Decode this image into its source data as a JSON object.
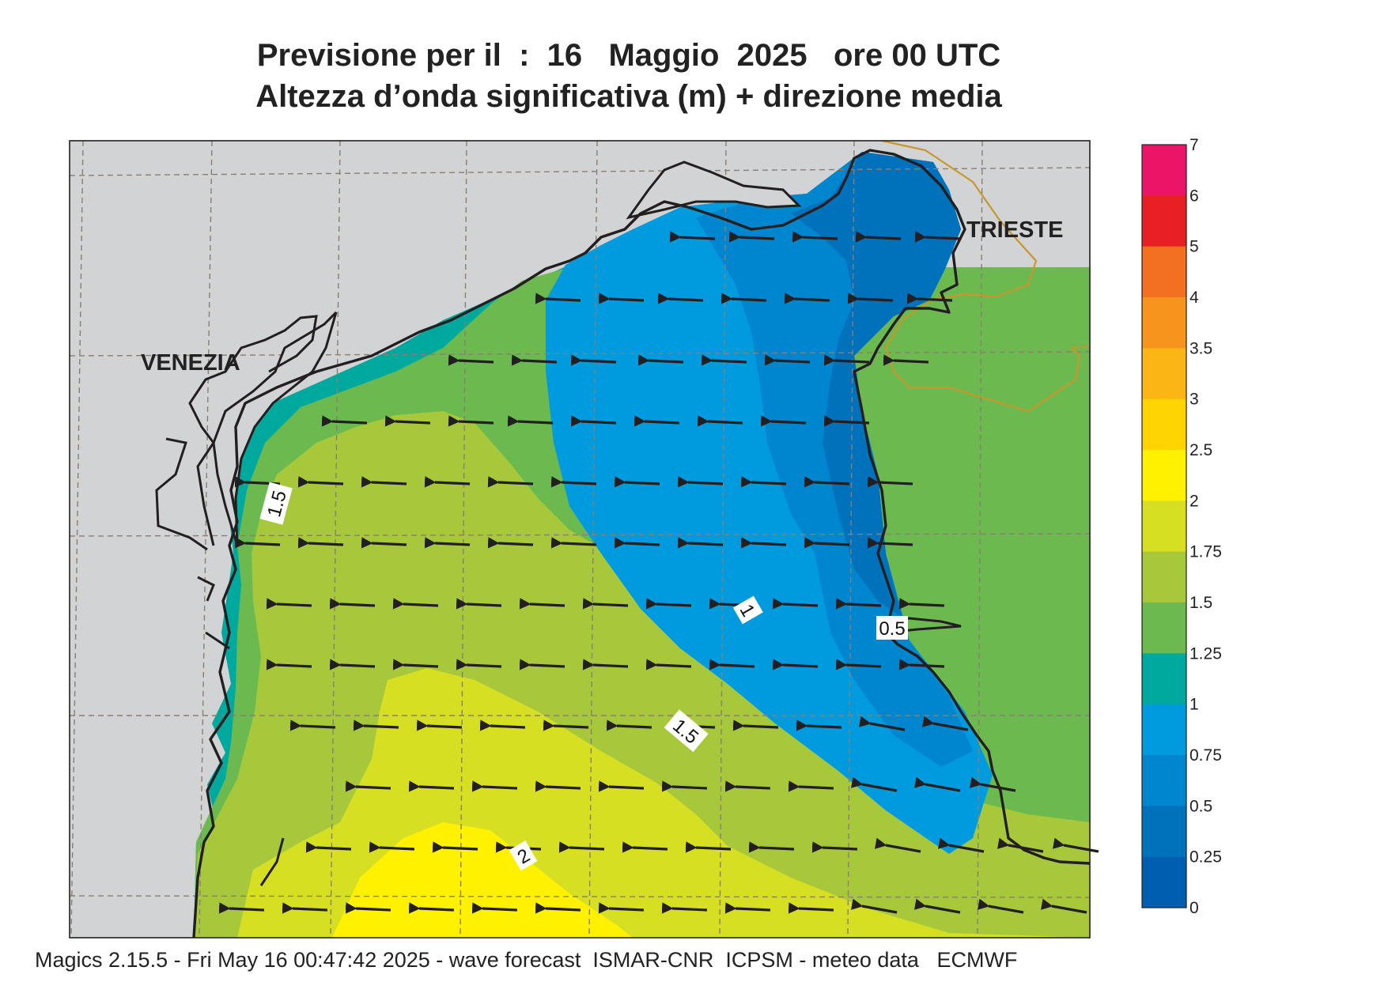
{
  "title": {
    "line1": "Previsione per il  :  16   Maggio  2025   ore 00 UTC",
    "line2": "Altezza d’onda significativa (m) + direzione media"
  },
  "cities": {
    "venezia": "VENEZIA",
    "trieste": "TRIESTE"
  },
  "contour_labels": {
    "a": "1.5",
    "b": "1",
    "c": "0.5",
    "d": "1.5",
    "e": "2"
  },
  "colorbar": {
    "ticks": [
      "7",
      "6",
      "5",
      "4",
      "3.5",
      "3",
      "2.5",
      "2",
      "1.75",
      "1.5",
      "1.25",
      "1",
      "0.75",
      "0.5",
      "0.25",
      "0"
    ],
    "colors_top_to_bottom": [
      "#ec1466",
      "#e82026",
      "#f36f21",
      "#f7941d",
      "#fbb514",
      "#ffd400",
      "#fff100",
      "#d7df23",
      "#a8c83b",
      "#6cba4f",
      "#00a99d",
      "#009bde",
      "#0085cf",
      "#0072bc",
      "#005eb0"
    ]
  },
  "colors": {
    "land": "#d1d3d4",
    "coast": "#231f20",
    "border": "#c8962c",
    "arrow": "#231f20"
  },
  "footer": "Magics 2.15.5 - Fri May 16 00:47:42 2025 - wave forecast  ISMAR-CNR  ICPSM - meteo data   ECMWF"
}
